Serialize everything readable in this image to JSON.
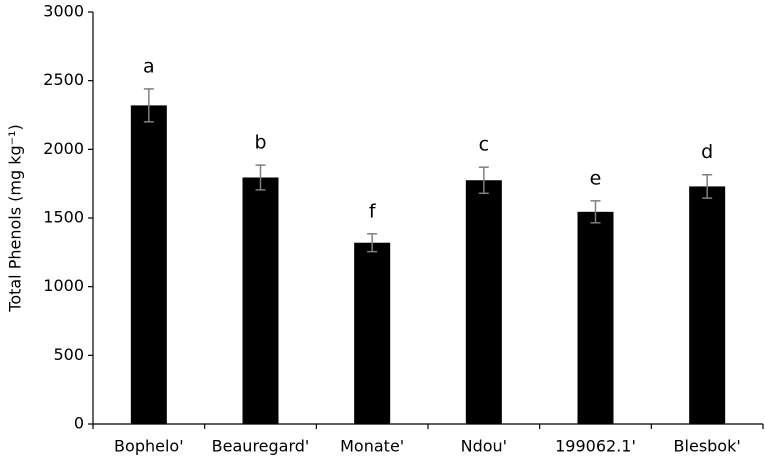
{
  "chart_data": {
    "type": "bar",
    "y_label": "Total Phenols (mg  kg⁻¹)",
    "categories": [
      "Bophelo'",
      "Beauregard'",
      "Monate'",
      "Ndou'",
      "199062.1'",
      "Blesbok'"
    ],
    "values": [
      2320,
      1795,
      1320,
      1775,
      1545,
      1730
    ],
    "errors": [
      120,
      90,
      65,
      95,
      80,
      85
    ],
    "annotations": [
      "a",
      "b",
      "f",
      "c",
      "e",
      "d"
    ],
    "color": "#000000",
    "error_color": "#7f7f7f",
    "ylim": [
      0,
      3000
    ],
    "yticks": [
      0,
      500,
      1000,
      1500,
      2000,
      2500,
      3000
    ],
    "grid": false
  }
}
